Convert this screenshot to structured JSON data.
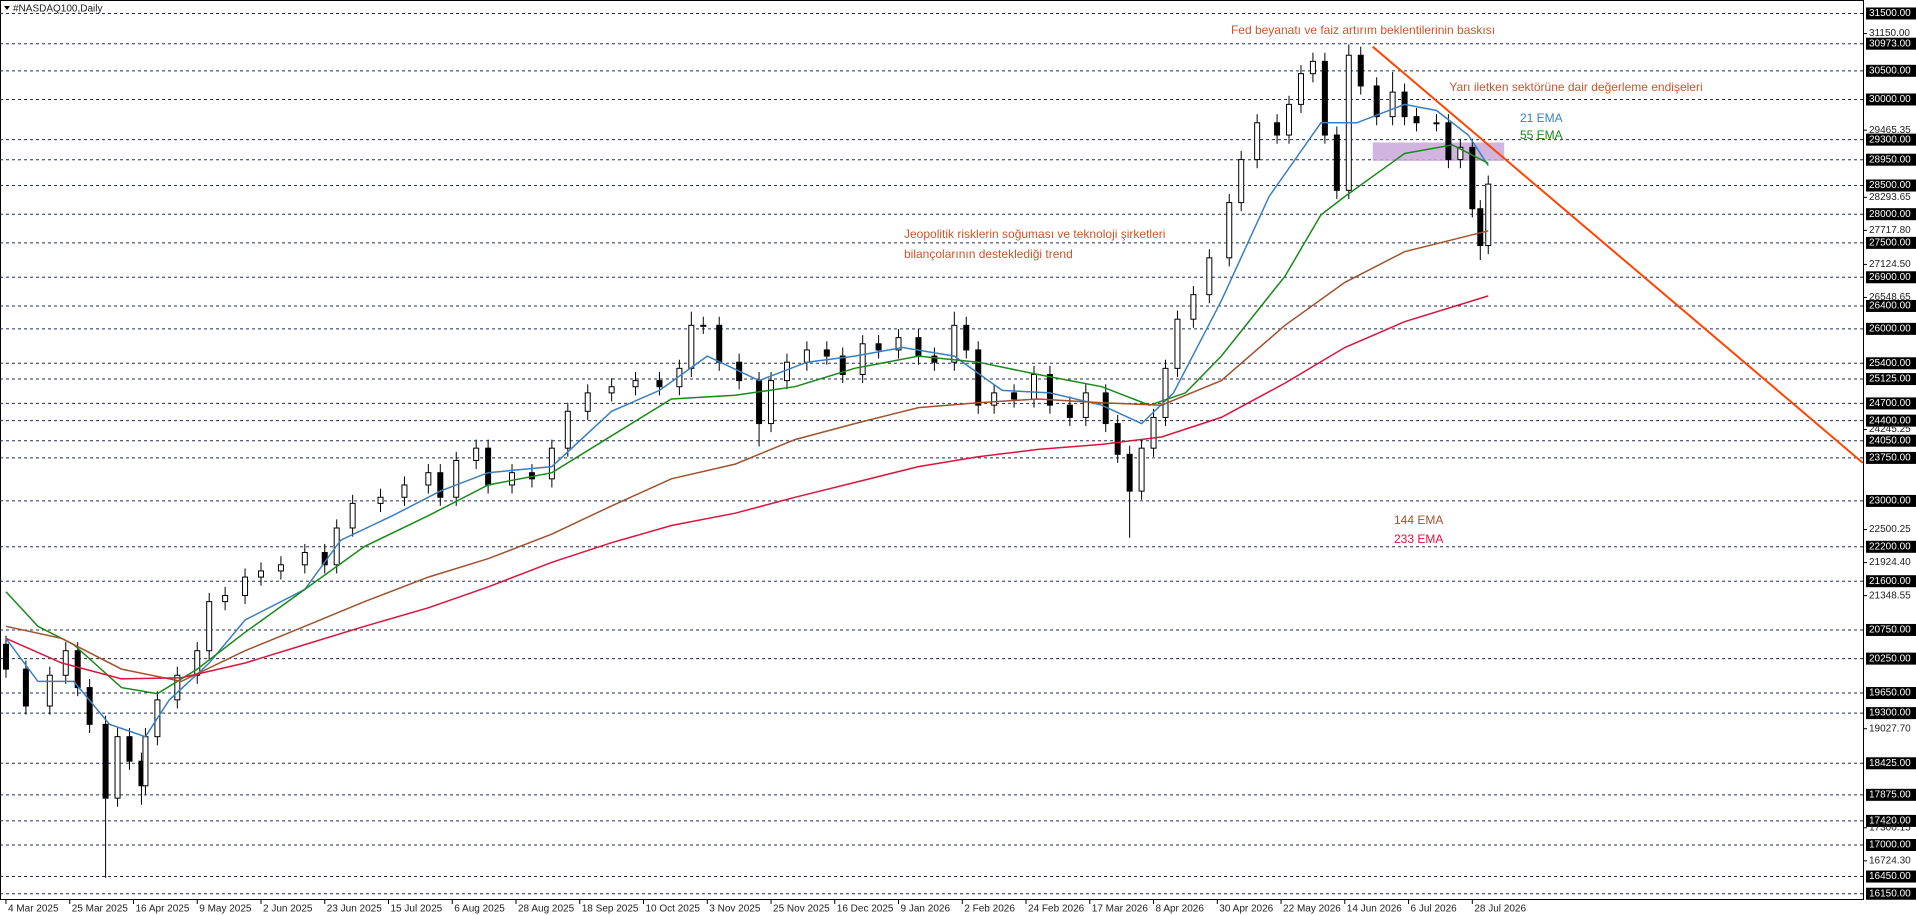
{
  "chart_data": {
    "type": "candlestick",
    "title": "#NASDAQ100,Daily",
    "candle_color": "#000000",
    "x": [
      0,
      5,
      11,
      15,
      18,
      21,
      25,
      28,
      31,
      34,
      35,
      38,
      43,
      48,
      51,
      55,
      60,
      64,
      69,
      75,
      80,
      83,
      87,
      94,
      100,
      106,
      109,
      113,
      118,
      121,
      127,
      132,
      137,
      141,
      146,
      152,
      158,
      164,
      169,
      172,
      175,
      179,
      184,
      189,
      192,
      196,
      201,
      206,
      210,
      215,
      219,
      224,
      229,
      233,
      238,
      241,
      244,
      248,
      253,
      258,
      262,
      267,
      271,
      276,
      279,
      282,
      285,
      288,
      291,
      294,
      298,
      302,
      307,
      310,
      314,
      319,
      322,
      325,
      328,
      331,
      334,
      337,
      340,
      344,
      348,
      351,
      354,
      359,
      362,
      365,
      368,
      370,
      372
    ],
    "open": [
      20500,
      20067,
      19424,
      19960,
      20388,
      19745,
      19104,
      17817,
      18889,
      18461,
      18033,
      18889,
      19531,
      19960,
      20388,
      21244,
      21351,
      21672,
      21779,
      21886,
      22100,
      21886,
      22528,
      22957,
      23064,
      23278,
      23492,
      23064,
      23706,
      23920,
      23278,
      23492,
      23385,
      23920,
      24563,
      24884,
      24991,
      25098,
      24991,
      25312,
      26062,
      26062,
      25419,
      25098,
      24349,
      25098,
      25419,
      25633,
      25526,
      25205,
      25740,
      25633,
      25847,
      25526,
      25419,
      26062,
      25633,
      24670,
      24884,
      24777,
      25205,
      24670,
      24456,
      24884,
      24349,
      23813,
      23171,
      23920,
      24456,
      25312,
      26169,
      26597,
      27239,
      28202,
      28952,
      29594,
      29380,
      29915,
      30450,
      30665,
      29380,
      28416,
      30772,
      30236,
      29701,
      30129,
      29701,
      29594,
      29594,
      28952,
      29166,
      28095,
      27453
    ],
    "high": [
      20650,
      20217,
      20110,
      20538,
      20538,
      19895,
      19254,
      19039,
      19039,
      18611,
      19039,
      19681,
      20110,
      20538,
      21394,
      21501,
      21822,
      21929,
      22036,
      22250,
      22250,
      22678,
      23107,
      23214,
      23428,
      23642,
      23642,
      23856,
      24070,
      24070,
      23642,
      23642,
      24070,
      24713,
      25034,
      25141,
      25248,
      25248,
      25462,
      26300,
      26212,
      26212,
      25569,
      25248,
      25248,
      25569,
      25783,
      25783,
      25676,
      25890,
      25890,
      25997,
      25997,
      25676,
      26300,
      26212,
      25783,
      25034,
      25034,
      25355,
      25355,
      24820,
      25034,
      25034,
      24499,
      23963,
      24070,
      24606,
      25462,
      26319,
      26747,
      27389,
      28352,
      29102,
      29744,
      29744,
      30065,
      30600,
      30815,
      30815,
      29530,
      30960,
      30922,
      30386,
      30480,
      30279,
      29851,
      29744,
      29744,
      29316,
      29316,
      28245,
      28674
    ],
    "low": [
      19917,
      19274,
      19274,
      19810,
      19595,
      18954,
      16427,
      17667,
      18311,
      17700,
      17883,
      18739,
      19381,
      19810,
      20238,
      21094,
      21201,
      21522,
      21629,
      21736,
      21736,
      21736,
      22378,
      22807,
      22914,
      23128,
      22914,
      22914,
      23556,
      23128,
      23128,
      23235,
      23235,
      23770,
      24413,
      24734,
      24841,
      24841,
      24841,
      25162,
      25912,
      25269,
      24948,
      23950,
      24199,
      24948,
      25269,
      25376,
      25055,
      25055,
      25483,
      25483,
      25376,
      25269,
      25269,
      25483,
      24520,
      24520,
      24627,
      24627,
      24520,
      24306,
      24306,
      24199,
      23663,
      22357,
      23021,
      23770,
      24306,
      25162,
      26019,
      26447,
      27089,
      28052,
      28802,
      29230,
      29230,
      29765,
      30300,
      29230,
      28266,
      28266,
      30086,
      29551,
      29551,
      29551,
      29444,
      29444,
      28802,
      28802,
      27945,
      27200,
      27303
    ],
    "close": [
      20067,
      19424,
      19960,
      20388,
      19745,
      19104,
      17817,
      18889,
      18461,
      18033,
      18889,
      19531,
      19960,
      20388,
      21244,
      21351,
      21672,
      21779,
      21886,
      22100,
      21886,
      22528,
      22957,
      23064,
      23278,
      23492,
      23064,
      23706,
      23920,
      23278,
      23492,
      23385,
      23920,
      24563,
      24884,
      24991,
      25098,
      24991,
      25312,
      26062,
      26062,
      25419,
      25098,
      24349,
      25098,
      25419,
      25633,
      25526,
      25205,
      25740,
      25633,
      25847,
      25526,
      25419,
      26062,
      25633,
      24670,
      24884,
      24777,
      25205,
      24670,
      24456,
      24884,
      24349,
      23813,
      23171,
      23920,
      24456,
      25312,
      26169,
      26597,
      27239,
      28202,
      28952,
      29594,
      29380,
      29915,
      30450,
      30665,
      29380,
      28416,
      30772,
      30236,
      29701,
      30129,
      29701,
      29594,
      29594,
      28952,
      29166,
      28095,
      27453,
      28524
    ],
    "series": [
      {
        "name": "21 EMA",
        "color": "#3a7fc1",
        "x": [
          0,
          8,
          17,
          26,
          35,
          41,
          51,
          60,
          75,
          84,
          97,
          109,
          121,
          137,
          152,
          164,
          176,
          189,
          201,
          213,
          225,
          238,
          250,
          262,
          275,
          285,
          293,
          305,
          317,
          330,
          339,
          351,
          359,
          367,
          372
        ],
        "values": [
          20602,
          19853,
          19853,
          19104,
          18889,
          19531,
          20174,
          20923,
          21458,
          22315,
          22743,
          23171,
          23492,
          23599,
          24563,
          24927,
          25526,
          25098,
          25419,
          25526,
          25676,
          25526,
          24927,
          24884,
          24670,
          24349,
          24884,
          26490,
          28309,
          29594,
          29594,
          29915,
          29808,
          29380,
          28845
        ]
      },
      {
        "name": "55 EMA",
        "color": "#1a8a1a",
        "x": [
          0,
          8,
          17,
          29,
          38,
          48,
          60,
          75,
          90,
          106,
          121,
          137,
          152,
          167,
          183,
          198,
          213,
          229,
          244,
          259,
          275,
          287,
          296,
          305,
          321,
          330,
          336,
          351,
          363,
          372
        ],
        "values": [
          21416,
          20814,
          20495,
          19745,
          19638,
          20067,
          20709,
          21458,
          22207,
          22743,
          23278,
          23492,
          24135,
          24777,
          24841,
          24991,
          25312,
          25526,
          25419,
          25205,
          24991,
          24670,
          24884,
          25526,
          26918,
          27988,
          28309,
          29059,
          29209,
          28887
        ]
      },
      {
        "name": "144 EMA",
        "color": "#a0522d",
        "x": [
          0,
          14,
          29,
          44,
          60,
          75,
          90,
          106,
          121,
          137,
          152,
          167,
          183,
          198,
          213,
          229,
          244,
          259,
          275,
          290,
          305,
          321,
          336,
          351,
          372
        ],
        "values": [
          20814,
          20602,
          20067,
          19853,
          20388,
          20814,
          21244,
          21672,
          21993,
          22422,
          22914,
          23385,
          23642,
          24070,
          24349,
          24627,
          24713,
          24777,
          24713,
          24670,
          25098,
          26062,
          26811,
          27346,
          27710
        ]
      },
      {
        "name": "233 EMA",
        "color": "#dc143c",
        "x": [
          0,
          14,
          29,
          44,
          60,
          75,
          90,
          106,
          121,
          137,
          152,
          167,
          183,
          198,
          213,
          229,
          244,
          259,
          275,
          290,
          305,
          321,
          336,
          351,
          372
        ],
        "values": [
          20602,
          20174,
          19896,
          19917,
          20174,
          20495,
          20814,
          21137,
          21501,
          21929,
          22272,
          22572,
          22786,
          23064,
          23321,
          23599,
          23771,
          23899,
          23985,
          24114,
          24456,
          25055,
          25676,
          26126,
          26575
        ]
      }
    ],
    "trendline": {
      "color": "#ff4500",
      "x": [
        343,
        466
      ],
      "values": [
        30921,
        23664
      ]
    },
    "zone": {
      "color": "#c9a8d8",
      "x": [
        343,
        376
      ],
      "values": [
        29250,
        28930
      ]
    },
    "annotations": [
      "Fed beyanatı ve faiz artırım beklentilerinin baskısı",
      "Yarı iletken sektörüne dair değerleme endişeleri",
      "Jeopolitik risklerin soğuması ve teknoloji şirketleri",
      "bilançolarının desteklediği trend"
    ],
    "annotation_color": "#c8562e",
    "xlim": [
      -1.5,
      466.3
    ],
    "ylim": [
      16041,
      31735
    ],
    "xticks": [
      {
        "value": 0,
        "label": "4 Mar 2025"
      },
      {
        "value": 16,
        "label": "25 Mar 2025"
      },
      {
        "value": 32,
        "label": "16 Apr 2025"
      },
      {
        "value": 48,
        "label": "9 May 2025"
      },
      {
        "value": 64,
        "label": "2 Jun 2025"
      },
      {
        "value": 80,
        "label": "23 Jun 2025"
      },
      {
        "value": 96,
        "label": "15 Jul 2025"
      },
      {
        "value": 112,
        "label": "6 Aug 2025"
      },
      {
        "value": 128,
        "label": "28 Aug 2025"
      },
      {
        "value": 144,
        "label": "18 Sep 2025"
      },
      {
        "value": 160,
        "label": "10 Oct 2025"
      },
      {
        "value": 176,
        "label": "3 Nov 2025"
      },
      {
        "value": 192,
        "label": "25 Nov 2025"
      },
      {
        "value": 208,
        "label": "16 Dec 2025"
      },
      {
        "value": 224,
        "label": "9 Jan 2026"
      },
      {
        "value": 240,
        "label": "2 Feb 2026"
      },
      {
        "value": 256,
        "label": "24 Feb 2026"
      },
      {
        "value": 272,
        "label": "17 Mar 2026"
      },
      {
        "value": 288,
        "label": "8 Apr 2026"
      },
      {
        "value": 304,
        "label": "30 Apr 2026"
      },
      {
        "value": 320,
        "label": "22 May 2026"
      },
      {
        "value": 336,
        "label": "14 Jun 2026"
      },
      {
        "value": 352,
        "label": "6 Jul 2026"
      },
      {
        "value": 368,
        "label": "28 Jul 2026"
      }
    ],
    "yticks": [
      {
        "value": 31150,
        "label": "31150.00"
      },
      {
        "value": 29465.35,
        "label": "29465.35"
      },
      {
        "value": 28293.65,
        "label": "28293.65"
      },
      {
        "value": 27717.8,
        "label": "27717.80"
      },
      {
        "value": 27124.5,
        "label": "27124.50"
      },
      {
        "value": 26548.65,
        "label": "26548.65"
      },
      {
        "value": 24245.25,
        "label": "24245.25"
      },
      {
        "value": 22500.25,
        "label": "22500.25"
      },
      {
        "value": 21924.4,
        "label": "21924.40"
      },
      {
        "value": 21348.55,
        "label": "21348.55"
      },
      {
        "value": 19027.7,
        "label": "19027.70"
      },
      {
        "value": 17300.15,
        "label": "17300.15"
      },
      {
        "value": 16724.3,
        "label": "16724.30"
      }
    ],
    "levels": [
      {
        "value": 31500,
        "label": "31500.00"
      },
      {
        "value": 30973,
        "label": "30973.00"
      },
      {
        "value": 30500,
        "label": "30500.00"
      },
      {
        "value": 30000,
        "label": "30000.00"
      },
      {
        "value": 29300,
        "label": "29300.00"
      },
      {
        "value": 28950,
        "label": "28950.00"
      },
      {
        "value": 28500,
        "label": "28500.00"
      },
      {
        "value": 28000,
        "label": "28000.00"
      },
      {
        "value": 27500,
        "label": "27500.00"
      },
      {
        "value": 26900,
        "label": "26900.00"
      },
      {
        "value": 26400,
        "label": "26400.00"
      },
      {
        "value": 26000,
        "label": "26000.00"
      },
      {
        "value": 25400,
        "label": "25400.00"
      },
      {
        "value": 25125,
        "label": "25125.00"
      },
      {
        "value": 24700,
        "label": "24700.00"
      },
      {
        "value": 24400,
        "label": "24400.00"
      },
      {
        "value": 24050,
        "label": "24050.00"
      },
      {
        "value": 23750,
        "label": "23750.00"
      },
      {
        "value": 23000,
        "label": "23000.00"
      },
      {
        "value": 22200,
        "label": "22200.00"
      },
      {
        "value": 21600,
        "label": "21600.00"
      },
      {
        "value": 20750,
        "label": "20750.00"
      },
      {
        "value": 20250,
        "label": "20250.00"
      },
      {
        "value": 19650,
        "label": "19650.00"
      },
      {
        "value": 19300,
        "label": "19300.00"
      },
      {
        "value": 18425,
        "label": "18425.00"
      },
      {
        "value": 17875,
        "label": "17875.00"
      },
      {
        "value": 17420,
        "label": "17420.00"
      },
      {
        "value": 17000,
        "label": "17000.00"
      },
      {
        "value": 16450,
        "label": "16450.00"
      },
      {
        "value": 16150,
        "label": "16150.00"
      }
    ]
  }
}
